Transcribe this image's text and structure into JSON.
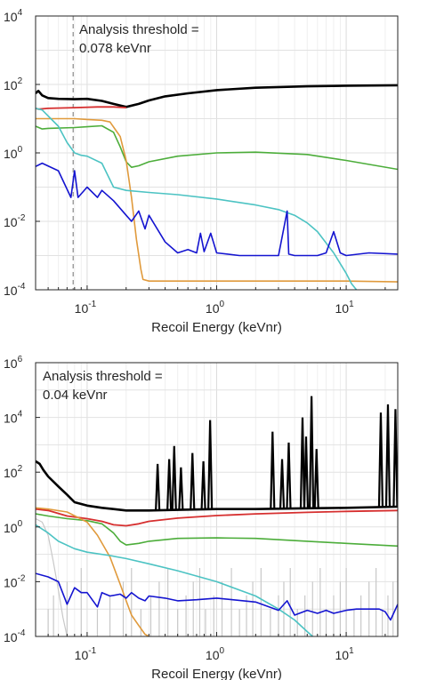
{
  "chart_data": [
    {
      "type": "line",
      "xlabel": "Recoil Energy (keVnr)",
      "xscale": "log",
      "yscale": "log",
      "xlim": [
        0.04,
        25
      ],
      "ylim": [
        0.0001,
        10000
      ],
      "grid": true,
      "x_tick_labels": [
        {
          "base": "10",
          "exp": "-1",
          "value": 0.1
        },
        {
          "base": "10",
          "exp": "0",
          "value": 1
        },
        {
          "base": "10",
          "exp": "1",
          "value": 10
        }
      ],
      "y_tick_labels": [
        {
          "base": "10",
          "exp": "-4",
          "value": 0.0001
        },
        {
          "base": "10",
          "exp": "-2",
          "value": 0.01
        },
        {
          "base": "10",
          "exp": "0",
          "value": 1
        },
        {
          "base": "10",
          "exp": "2",
          "value": 100
        },
        {
          "base": "10",
          "exp": "4",
          "value": 10000
        }
      ],
      "annotation": {
        "line1": "Analysis threshold =",
        "line2": "0.078 keVnr"
      },
      "threshold": 0.078,
      "series": [
        {
          "color": "#000000",
          "width": 2.6,
          "x": [
            0.04,
            0.042,
            0.045,
            0.05,
            0.06,
            0.08,
            0.1,
            0.13,
            0.16,
            0.2,
            0.25,
            0.3,
            0.4,
            0.6,
            1,
            2,
            5,
            10,
            25
          ],
          "y": [
            55,
            65,
            48,
            40,
            38,
            37,
            38,
            33,
            27,
            22,
            27,
            34,
            45,
            55,
            68,
            80,
            88,
            92,
            95
          ]
        },
        {
          "color": "#d62f2f",
          "width": 1.8,
          "x": [
            0.04,
            0.042,
            0.05,
            0.08,
            0.12,
            0.16,
            0.2
          ],
          "y": [
            20,
            19,
            20,
            21,
            22,
            22,
            21
          ]
        },
        {
          "color": "#4cad3a",
          "width": 1.6,
          "x": [
            0.04,
            0.045,
            0.05,
            0.08,
            0.1,
            0.13,
            0.16,
            0.18,
            0.2,
            0.22,
            0.25,
            0.3,
            0.5,
            1,
            2,
            5,
            10,
            25
          ],
          "y": [
            6,
            5,
            5.2,
            5.5,
            5.8,
            6.2,
            4,
            1.5,
            0.55,
            0.38,
            0.42,
            0.55,
            0.8,
            1.0,
            1.05,
            0.9,
            0.6,
            0.33
          ]
        },
        {
          "color": "#e09a3c",
          "width": 1.6,
          "x": [
            0.04,
            0.05,
            0.08,
            0.1,
            0.13,
            0.15,
            0.18,
            0.2,
            0.22,
            0.24,
            0.26,
            0.27,
            0.3,
            1,
            10,
            25
          ],
          "y": [
            10,
            10,
            10,
            9.5,
            9,
            8,
            3,
            0.6,
            0.05,
            0.003,
            0.0004,
            0.0002,
            0.00018,
            0.00018,
            0.00018,
            0.00017
          ]
        },
        {
          "color": "#4cc3c3",
          "width": 1.6,
          "x": [
            0.04,
            0.045,
            0.06,
            0.07,
            0.08,
            0.09,
            0.1,
            0.13,
            0.16,
            0.2,
            0.3,
            0.5,
            1,
            2,
            3,
            4,
            5,
            6,
            8,
            10,
            11,
            12
          ],
          "y": [
            20,
            18,
            6,
            2,
            1.0,
            0.85,
            0.8,
            0.5,
            0.1,
            0.08,
            0.07,
            0.06,
            0.045,
            0.03,
            0.022,
            0.015,
            0.009,
            0.005,
            0.0012,
            0.0003,
            0.00015,
            0.0001
          ]
        },
        {
          "color": "#1414d0",
          "width": 1.6,
          "x": [
            0.04,
            0.045,
            0.06,
            0.075,
            0.08,
            0.085,
            0.1,
            0.12,
            0.13,
            0.16,
            0.2,
            0.22,
            0.25,
            0.28,
            0.3,
            0.4,
            0.5,
            0.6,
            0.7,
            0.75,
            0.8,
            0.9,
            1,
            1.5,
            2,
            3,
            3.5,
            3.6,
            4,
            5,
            6,
            7,
            8,
            9,
            10,
            15,
            25
          ],
          "y": [
            0.4,
            0.5,
            0.3,
            0.05,
            0.3,
            0.05,
            0.1,
            0.05,
            0.08,
            0.04,
            0.015,
            0.01,
            0.02,
            0.006,
            0.015,
            0.0025,
            0.0012,
            0.0015,
            0.0012,
            0.0045,
            0.0013,
            0.0045,
            0.0012,
            0.001,
            0.001,
            0.001,
            0.02,
            0.0011,
            0.001,
            0.001,
            0.001,
            0.0012,
            0.005,
            0.0012,
            0.001,
            0.0012,
            0.0011
          ]
        }
      ]
    },
    {
      "type": "line",
      "xlabel": "Recoil Energy (keVnr)",
      "xscale": "log",
      "yscale": "log",
      "xlim": [
        0.04,
        25
      ],
      "ylim": [
        0.0001,
        1000000
      ],
      "grid": true,
      "x_tick_labels": [
        {
          "base": "10",
          "exp": "-1",
          "value": 0.1
        },
        {
          "base": "10",
          "exp": "0",
          "value": 1
        },
        {
          "base": "10",
          "exp": "1",
          "value": 10
        }
      ],
      "y_tick_labels": [
        {
          "base": "10",
          "exp": "-4",
          "value": 0.0001
        },
        {
          "base": "10",
          "exp": "-2",
          "value": 0.01
        },
        {
          "base": "10",
          "exp": "0",
          "value": 1
        },
        {
          "base": "10",
          "exp": "2",
          "value": 100
        },
        {
          "base": "10",
          "exp": "4",
          "value": 10000
        },
        {
          "base": "10",
          "exp": "6",
          "value": 1000000
        }
      ],
      "annotation": {
        "line1": "Analysis threshold =",
        "line2": "0.04 keVnr"
      },
      "gray_spikes": [
        0.05,
        0.055,
        0.07,
        0.09,
        0.12,
        0.15,
        0.19,
        0.22,
        0.26,
        0.31,
        0.36,
        0.42,
        0.5,
        0.58,
        0.66,
        0.74,
        0.82,
        0.95,
        1.1,
        1.3,
        1.5,
        1.7,
        1.9,
        2.2,
        2.6,
        3,
        3.3,
        3.7,
        4.2,
        4.8,
        5.5,
        6.3,
        7,
        8,
        9,
        10,
        11.5,
        13,
        15,
        17,
        19,
        21,
        23
      ],
      "series": [
        {
          "color": "#c8c8c8",
          "width": 1.2,
          "x": [
            0.04,
            0.045,
            0.05,
            0.055,
            0.06,
            0.065,
            0.07
          ],
          "y": [
            2,
            1.5,
            0.5,
            0.05,
            0.005,
            0.0005,
            0.0001
          ]
        },
        {
          "color": "#d62f2f",
          "width": 1.8,
          "x": [
            0.04,
            0.05,
            0.07,
            0.1,
            0.13,
            0.16,
            0.2,
            0.25,
            0.3,
            0.5,
            1,
            2,
            5,
            10,
            25
          ],
          "y": [
            4.5,
            4,
            2.5,
            2,
            1.6,
            1.2,
            1.1,
            1.3,
            1.6,
            2.1,
            2.6,
            3,
            3.4,
            3.7,
            4
          ]
        },
        {
          "color": "#4cad3a",
          "width": 1.6,
          "x": [
            0.04,
            0.05,
            0.07,
            0.1,
            0.13,
            0.16,
            0.18,
            0.2,
            0.25,
            0.3,
            0.5,
            1,
            2,
            5,
            10,
            25
          ],
          "y": [
            3,
            2.5,
            2,
            1.7,
            1.3,
            0.6,
            0.3,
            0.22,
            0.25,
            0.3,
            0.38,
            0.4,
            0.38,
            0.3,
            0.25,
            0.2
          ]
        },
        {
          "color": "#e09a3c",
          "width": 1.6,
          "x": [
            0.04,
            0.05,
            0.07,
            0.1,
            0.12,
            0.15,
            0.18,
            0.2,
            0.22,
            0.25,
            0.28,
            0.3
          ],
          "y": [
            5,
            4.5,
            3.5,
            1.5,
            0.5,
            0.08,
            0.008,
            0.002,
            0.0006,
            0.00025,
            0.00012,
            0.0001
          ]
        },
        {
          "color": "#4cc3c3",
          "width": 1.6,
          "x": [
            0.04,
            0.05,
            0.06,
            0.08,
            0.1,
            0.15,
            0.2,
            0.3,
            0.5,
            1,
            2,
            3,
            4,
            5,
            5.5
          ],
          "y": [
            1.2,
            0.6,
            0.3,
            0.16,
            0.12,
            0.09,
            0.07,
            0.045,
            0.025,
            0.01,
            0.003,
            0.001,
            0.0004,
            0.00015,
            0.0001
          ]
        },
        {
          "color": "#1414d0",
          "width": 1.6,
          "x": [
            0.04,
            0.05,
            0.06,
            0.07,
            0.08,
            0.09,
            0.1,
            0.12,
            0.13,
            0.15,
            0.18,
            0.2,
            0.22,
            0.25,
            0.28,
            0.3,
            0.4,
            0.5,
            0.7,
            1,
            2,
            3,
            3.5,
            4,
            5,
            6,
            7,
            8,
            10,
            12,
            15,
            18,
            20,
            22,
            25
          ],
          "y": [
            0.02,
            0.015,
            0.01,
            0.0015,
            0.006,
            0.004,
            0.004,
            0.0012,
            0.004,
            0.003,
            0.0035,
            0.0025,
            0.004,
            0.0025,
            0.002,
            0.003,
            0.0025,
            0.002,
            0.0022,
            0.0025,
            0.0018,
            0.0009,
            0.002,
            0.0006,
            0.0009,
            0.0007,
            0.0009,
            0.0007,
            0.0009,
            0.001,
            0.001,
            0.001,
            0.0008,
            0.0004,
            0.0015
          ]
        },
        {
          "color": "#000000",
          "width": 2.6,
          "x": [
            0.04,
            0.043,
            0.046,
            0.05,
            0.06,
            0.07,
            0.08,
            0.1,
            0.13,
            0.16,
            0.2,
            0.3,
            0.5,
            1,
            2,
            5,
            10,
            25
          ],
          "y": [
            250,
            200,
            120,
            70,
            30,
            15,
            8,
            6,
            5,
            4.5,
            4,
            4,
            4.2,
            4.5,
            4.5,
            4.8,
            5,
            5.5
          ]
        }
      ],
      "black_spikes": [
        {
          "x": 0.35,
          "y": 200
        },
        {
          "x": 0.43,
          "y": 300
        },
        {
          "x": 0.47,
          "y": 900
        },
        {
          "x": 0.53,
          "y": 150
        },
        {
          "x": 0.65,
          "y": 500
        },
        {
          "x": 0.79,
          "y": 250
        },
        {
          "x": 0.89,
          "y": 8000
        },
        {
          "x": 2.7,
          "y": 3000
        },
        {
          "x": 3.2,
          "y": 300
        },
        {
          "x": 3.6,
          "y": 1200
        },
        {
          "x": 4.6,
          "y": 10000
        },
        {
          "x": 4.9,
          "y": 2000
        },
        {
          "x": 5.4,
          "y": 60000
        },
        {
          "x": 5.9,
          "y": 700
        },
        {
          "x": 18.5,
          "y": 15000
        },
        {
          "x": 21.0,
          "y": 30000
        },
        {
          "x": 24.0,
          "y": 20000
        }
      ]
    }
  ]
}
